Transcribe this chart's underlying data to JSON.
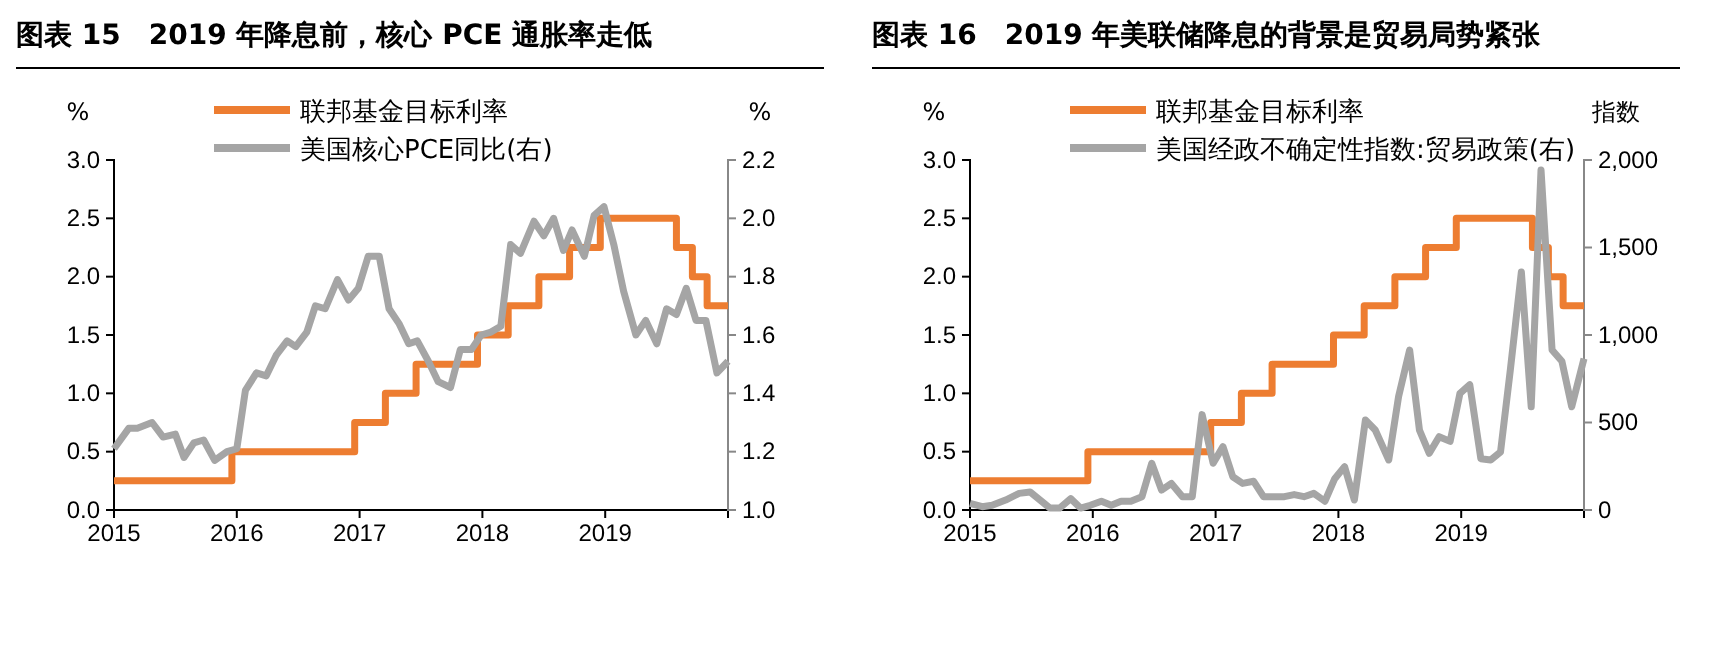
{
  "chart_data": [
    {
      "type": "line",
      "title": "图表 15　2019 年降息前，核心 PCE 通胀率走低",
      "ylabel": "%",
      "y2label": "%",
      "xlim": [
        2015,
        2020
      ],
      "xticks": [
        2015,
        2016,
        2017,
        2018,
        2019
      ],
      "ylim": [
        0,
        3
      ],
      "yticks": [
        {
          "value": 0,
          "label": "0.0"
        },
        {
          "value": 0.5,
          "label": "0.5"
        },
        {
          "value": 1,
          "label": "1.0"
        },
        {
          "value": 1.5,
          "label": "1.5"
        },
        {
          "value": 2,
          "label": "2.0"
        },
        {
          "value": 2.5,
          "label": "2.5"
        },
        {
          "value": 3,
          "label": "3.0"
        }
      ],
      "y2lim": [
        1,
        2.2
      ],
      "y2ticks": [
        {
          "value": 1,
          "label": "1.0"
        },
        {
          "value": 1.2,
          "label": "1.2"
        },
        {
          "value": 1.4,
          "label": "1.4"
        },
        {
          "value": 1.6,
          "label": "1.6"
        },
        {
          "value": 1.8,
          "label": "1.8"
        },
        {
          "value": 2,
          "label": "2.0"
        },
        {
          "value": 2.2,
          "label": "2.2"
        }
      ],
      "legend": "top",
      "grid": false,
      "series": [
        {
          "name": "联邦基金目标利率",
          "type": "step",
          "color": "#ed7d31",
          "x": [
            2015,
            2015.96,
            2016.96,
            2017.21,
            2017.46,
            2017.96,
            2018.21,
            2018.46,
            2018.71,
            2018.96,
            2019.58,
            2019.71,
            2019.83,
            2020
          ],
          "values": [
            0.25,
            0.5,
            0.75,
            1,
            1.25,
            1.5,
            1.75,
            2,
            2.25,
            2.5,
            2.25,
            2,
            1.75,
            1.75
          ]
        },
        {
          "name": "美国核心PCE同比(右)",
          "axis": "y2",
          "color": "#a5a5a5",
          "x": [
            2015,
            2015.12,
            2015.19,
            2015.31,
            2015.4,
            2015.5,
            2015.57,
            2015.65,
            2015.73,
            2015.82,
            2015.92,
            2016,
            2016.07,
            2016.16,
            2016.24,
            2016.32,
            2016.41,
            2016.48,
            2016.57,
            2016.64,
            2016.72,
            2016.82,
            2016.91,
            2016.99,
            2017.07,
            2017.16,
            2017.24,
            2017.32,
            2017.4,
            2017.47,
            2017.56,
            2017.64,
            2017.74,
            2017.82,
            2017.91,
            2017.99,
            2018.07,
            2018.15,
            2018.23,
            2018.31,
            2018.42,
            2018.5,
            2018.58,
            2018.66,
            2018.73,
            2018.83,
            2018.91,
            2018.99,
            2019.07,
            2019.15,
            2019.25,
            2019.33,
            2019.42,
            2019.5,
            2019.58,
            2019.66,
            2019.74,
            2019.82,
            2019.91,
            2020
          ],
          "values": [
            1.21,
            1.28,
            1.28,
            1.3,
            1.25,
            1.26,
            1.18,
            1.23,
            1.24,
            1.17,
            1.2,
            1.21,
            1.41,
            1.47,
            1.46,
            1.53,
            1.58,
            1.56,
            1.61,
            1.7,
            1.69,
            1.79,
            1.72,
            1.76,
            1.87,
            1.87,
            1.69,
            1.64,
            1.57,
            1.58,
            1.51,
            1.44,
            1.42,
            1.55,
            1.55,
            1.6,
            1.61,
            1.63,
            1.91,
            1.88,
            1.99,
            1.94,
            2,
            1.89,
            1.96,
            1.87,
            2.01,
            2.04,
            1.91,
            1.75,
            1.6,
            1.65,
            1.57,
            1.69,
            1.67,
            1.76,
            1.65,
            1.65,
            1.47,
            1.51
          ]
        }
      ]
    },
    {
      "type": "line",
      "title": "图表 16　2019 年美联储降息的背景是贸易局势紧张",
      "ylabel": "%",
      "y2label": "指数",
      "xlim": [
        2015,
        2020
      ],
      "xticks": [
        2015,
        2016,
        2017,
        2018,
        2019
      ],
      "ylim": [
        0,
        3
      ],
      "yticks": [
        {
          "value": 0,
          "label": "0.0"
        },
        {
          "value": 0.5,
          "label": "0.5"
        },
        {
          "value": 1,
          "label": "1.0"
        },
        {
          "value": 1.5,
          "label": "1.5"
        },
        {
          "value": 2,
          "label": "2.0"
        },
        {
          "value": 2.5,
          "label": "2.5"
        },
        {
          "value": 3,
          "label": "3.0"
        }
      ],
      "y2lim": [
        0,
        2000
      ],
      "y2ticks": [
        0,
        500,
        {
          "value": 1000,
          "label": "1,000"
        },
        {
          "value": 1500,
          "label": "1,500"
        },
        {
          "value": 2000,
          "label": "2,000"
        }
      ],
      "legend": "top",
      "grid": false,
      "series": [
        {
          "name": "联邦基金目标利率",
          "type": "step",
          "color": "#ed7d31",
          "x": [
            2015,
            2015.96,
            2016.96,
            2017.21,
            2017.46,
            2017.96,
            2018.21,
            2018.46,
            2018.71,
            2018.96,
            2019.58,
            2019.71,
            2019.83,
            2020
          ],
          "values": [
            0.25,
            0.5,
            0.75,
            1,
            1.25,
            1.5,
            1.75,
            2,
            2.25,
            2.5,
            2.25,
            2,
            1.75,
            1.75
          ]
        },
        {
          "name": "美国经政不确定性指数:贸易政策(右)",
          "axis": "y2",
          "color": "#a5a5a5",
          "x": [
            2015,
            2015.1,
            2015.18,
            2015.29,
            2015.4,
            2015.49,
            2015.57,
            2015.65,
            2015.73,
            2015.82,
            2015.9,
            2015.98,
            2016.07,
            2016.15,
            2016.23,
            2016.31,
            2016.4,
            2016.48,
            2016.56,
            2016.64,
            2016.73,
            2016.81,
            2016.89,
            2016.98,
            2017.06,
            2017.14,
            2017.22,
            2017.31,
            2017.39,
            2017.47,
            2017.56,
            2017.64,
            2017.72,
            2017.8,
            2017.89,
            2017.97,
            2018.05,
            2018.13,
            2018.22,
            2018.3,
            2018.41,
            2018.49,
            2018.58,
            2018.66,
            2018.74,
            2018.82,
            2018.91,
            2018.99,
            2019.07,
            2019.16,
            2019.24,
            2019.32,
            2019.4,
            2019.49,
            2019.57,
            2019.65,
            2019.74,
            2019.82,
            2019.9,
            2020
          ],
          "values": [
            38,
            19,
            27,
            57,
            95,
            103,
            57,
            11,
            11,
            65,
            11,
            27,
            50,
            27,
            50,
            50,
            76,
            267,
            114,
            152,
            76,
            76,
            545,
            267,
            362,
            190,
            152,
            164,
            76,
            76,
            76,
            88,
            76,
            95,
            50,
            179,
            248,
            57,
            514,
            457,
            286,
            648,
            914,
            457,
            324,
            419,
            392,
            667,
            716,
            293,
            286,
            331,
            800,
            1360,
            590,
            1943,
            914,
            850,
            590,
            865
          ]
        }
      ]
    }
  ]
}
